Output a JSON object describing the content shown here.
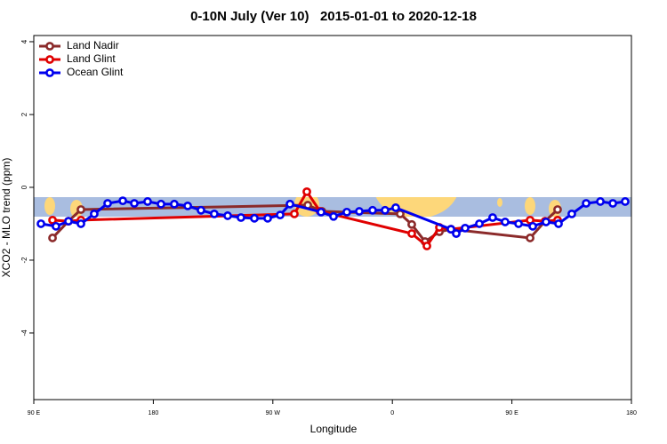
{
  "chart_data": {
    "type": "line",
    "title": "0-10N July (Ver 10)   2015-01-01 to 2020-12-18",
    "xlabel": "Longitude",
    "ylabel": "XCO2 - MLO trend (ppm)",
    "xlim": [
      90,
      540
    ],
    "ylim": [
      -5.83,
      4.17
    ],
    "xticks": [
      {
        "value": 90,
        "label": "90 E"
      },
      180,
      {
        "value": 270,
        "label": "90 W"
      },
      {
        "value": 360,
        "label": "0"
      },
      {
        "value": 450,
        "label": "90 E"
      },
      {
        "value": 540,
        "label": "180"
      }
    ],
    "yticks": [
      -4,
      -2,
      0,
      2,
      4
    ],
    "legend": "upper left",
    "series": [
      {
        "name": "Land Nadir",
        "color": "#8b2a2a",
        "x": [
          104.1,
          116.1,
          125.5,
          296.3,
          307,
          365.9,
          374.6,
          384.6,
          395.4,
          404.1,
          463.7,
          475,
          484.4
        ],
        "values": [
          -1.39,
          -0.93,
          -0.61,
          -0.49,
          -0.66,
          -0.73,
          -1.02,
          -1.49,
          -1.22,
          -1.15,
          -1.39,
          -0.93,
          -0.61
        ]
      },
      {
        "name": "Land Glint",
        "color": "#e00000",
        "x": [
          104.1,
          116.1,
          125.5,
          286.2,
          295.6,
          305.6,
          374.6,
          386,
          395.4,
          404.1,
          463.7,
          475,
          484.4
        ],
        "values": [
          -0.9,
          -0.93,
          -0.9,
          -0.73,
          -0.12,
          -0.66,
          -1.27,
          -1.61,
          -1.1,
          -1.15,
          -0.9,
          -0.93,
          -0.9
        ]
      },
      {
        "name": "Ocean Glint",
        "color": "#0000ee",
        "x": [
          95.4,
          106.7,
          116.1,
          125.5,
          135.5,
          145.6,
          157,
          165.7,
          175.7,
          185.8,
          195.8,
          205.9,
          215.9,
          225.9,
          236,
          246,
          256.1,
          266.1,
          275.5,
          282.9,
          306.3,
          315.7,
          325.7,
          335.1,
          345.1,
          354.5,
          362.5,
          404.1,
          408.1,
          414.8,
          425.5,
          435.5,
          444.9,
          455,
          465.7,
          475.7,
          485.1,
          495.1,
          505.9,
          516.6,
          526,
          535.3
        ],
        "values": [
          -1.0,
          -1.07,
          -0.93,
          -1.0,
          -0.73,
          -0.44,
          -0.37,
          -0.44,
          -0.39,
          -0.46,
          -0.46,
          -0.51,
          -0.63,
          -0.73,
          -0.78,
          -0.83,
          -0.85,
          -0.85,
          -0.76,
          -0.46,
          -0.68,
          -0.8,
          -0.68,
          -0.66,
          -0.63,
          -0.63,
          -0.56,
          -1.15,
          -1.27,
          -1.12,
          -1.0,
          -0.83,
          -0.95,
          -1.0,
          -1.07,
          -0.95,
          -1.0,
          -0.73,
          -0.44,
          -0.39,
          -0.44,
          -0.39
        ]
      }
    ]
  }
}
